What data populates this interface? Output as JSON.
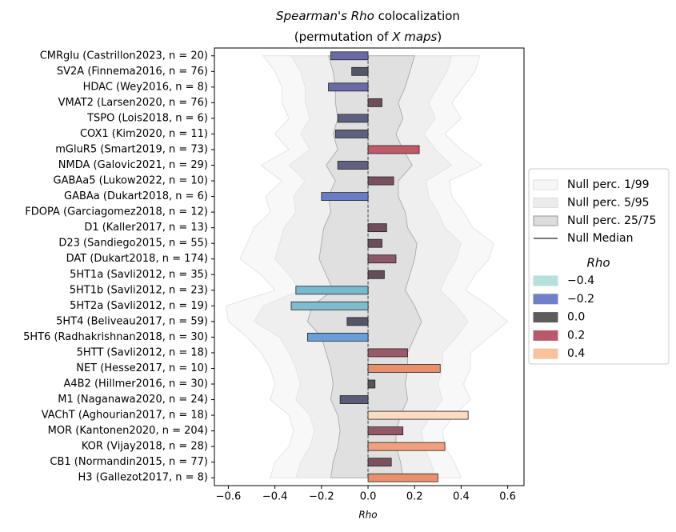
{
  "chart_data": {
    "type": "bar",
    "title_italic": "Spearman's Rho",
    "title": "colocalization",
    "subtitle_start": "(permutation of",
    "subtitle_italic": "X maps",
    "subtitle_end": ")",
    "x_label": "Rho",
    "categories": [
      "CMRglu (Castrillon2023, n = 20)",
      "SV2A (Finnema2016, n = 76)",
      "HDAC (Wey2016, n = 8)",
      "VMAT2 (Larsen2020, n = 76)",
      "TSPO (Lois2018, n = 6)",
      "COX1 (Kim2020, n = 11)",
      "mGluR5 (Smart2019, n = 73)",
      "NMDA (Galovic2021, n = 29)",
      "GABAa5 (Lukow2022, n = 10)",
      "GABAa (Dukart2018, n = 6)",
      "FDOPA (Garciagomez2018, n = 12)",
      "D1 (Kaller2017, n = 13)",
      "D23 (Sandiego2015, n = 55)",
      "DAT (Dukart2018, n = 174)",
      "5HT1a (Savli2012, n = 35)",
      "5HT1b (Savli2012, n = 23)",
      "5HT2a (Savli2012, n = 19)",
      "5HT4 (Beliveau2017, n = 59)",
      "5HT6 (Radhakrishnan2018, n = 30)",
      "5HTT (Savli2012, n = 18)",
      "NET (Hesse2017, n = 10)",
      "A4B2 (Hillmer2016, n = 30)",
      "M1 (Naganawa2020, n = 24)",
      "VAChT (Aghourian2017, n = 18)",
      "MOR (Kantonen2020, n = 204)",
      "KOR (Vijay2018, n = 28)",
      "CB1 (Normandin2015, n = 77)",
      "H3 (Gallezot2017, n = 8)"
    ],
    "values": [
      -0.16,
      -0.07,
      -0.17,
      0.06,
      -0.13,
      -0.14,
      0.22,
      -0.13,
      0.11,
      -0.2,
      0,
      0.08,
      0.06,
      0.12,
      0.07,
      -0.31,
      -0.33,
      -0.09,
      -0.26,
      0.17,
      0.31,
      0.03,
      -0.12,
      0.43,
      0.15,
      0.33,
      0.1,
      0.3
    ],
    "colors": [
      "#6a6aa8",
      "#55556a",
      "#6a6aa8",
      "#6e4f5a",
      "#5f5f80",
      "#5f5f80",
      "#c05a68",
      "#606080",
      "#7a5060",
      "#6a7cc8",
      "#5a5a5a",
      "#704e5c",
      "#6a4e5a",
      "#8a5868",
      "#644e58",
      "#78b8d0",
      "#80bcd0",
      "#555566",
      "#6a9ed8",
      "#9a5a6c",
      "#e8906c",
      "#555555",
      "#5c5c78",
      "#fbdcc0",
      "#925868",
      "#f0a07c",
      "#7c5060",
      "#e8906c"
    ],
    "bands": [
      {
        "name": "Null perc. 1/99",
        "color": "#f6f6f6",
        "lower": [
          -0.45,
          -0.4,
          -0.37,
          -0.37,
          -0.34,
          -0.4,
          -0.34,
          -0.46,
          -0.37,
          -0.44,
          -0.42,
          -0.49,
          -0.52,
          -0.55,
          -0.46,
          -0.4,
          -0.61,
          -0.6,
          -0.52,
          -0.46,
          -0.42,
          -0.4,
          -0.42,
          -0.34,
          -0.32,
          -0.34,
          -0.4,
          -0.42
        ],
        "upper": [
          0.48,
          0.46,
          0.41,
          0.36,
          0.4,
          0.33,
          0.4,
          0.49,
          0.35,
          0.36,
          0.41,
          0.45,
          0.54,
          0.52,
          0.46,
          0.42,
          0.52,
          0.6,
          0.52,
          0.44,
          0.44,
          0.41,
          0.44,
          0.37,
          0.32,
          0.33,
          0.37,
          0.4
        ]
      },
      {
        "name": "Null perc. 5/95",
        "color": "#ececec",
        "lower": [
          -0.33,
          -0.29,
          -0.27,
          -0.27,
          -0.25,
          -0.29,
          -0.25,
          -0.34,
          -0.27,
          -0.32,
          -0.31,
          -0.36,
          -0.38,
          -0.4,
          -0.34,
          -0.29,
          -0.45,
          -0.49,
          -0.38,
          -0.34,
          -0.31,
          -0.29,
          -0.31,
          -0.25,
          -0.23,
          -0.25,
          -0.29,
          -0.31
        ],
        "upper": [
          0.36,
          0.34,
          0.3,
          0.26,
          0.29,
          0.24,
          0.29,
          0.36,
          0.25,
          0.26,
          0.3,
          0.33,
          0.4,
          0.38,
          0.34,
          0.31,
          0.38,
          0.43,
          0.38,
          0.32,
          0.32,
          0.3,
          0.32,
          0.27,
          0.23,
          0.24,
          0.27,
          0.29
        ]
      },
      {
        "name": "Null perc. 25/75",
        "color": "#dcdcdc",
        "lower": [
          -0.17,
          -0.15,
          -0.14,
          -0.14,
          -0.13,
          -0.15,
          -0.13,
          -0.18,
          -0.14,
          -0.17,
          -0.16,
          -0.19,
          -0.2,
          -0.21,
          -0.18,
          -0.15,
          -0.24,
          -0.26,
          -0.2,
          -0.18,
          -0.16,
          -0.15,
          -0.16,
          -0.13,
          -0.12,
          -0.13,
          -0.15,
          -0.16
        ],
        "upper": [
          0.2,
          0.18,
          0.16,
          0.13,
          0.15,
          0.12,
          0.15,
          0.19,
          0.13,
          0.13,
          0.16,
          0.17,
          0.21,
          0.2,
          0.18,
          0.16,
          0.2,
          0.23,
          0.2,
          0.17,
          0.17,
          0.16,
          0.17,
          0.14,
          0.12,
          0.12,
          0.14,
          0.15
        ]
      }
    ],
    "median": {
      "name": "Null Median",
      "color": "#777777",
      "values": [
        0,
        0,
        0,
        0,
        0,
        0,
        0,
        0,
        0,
        0,
        0,
        0,
        0,
        0,
        0,
        0,
        0,
        0,
        0,
        0,
        0,
        0,
        0,
        0,
        0,
        0,
        0,
        0
      ]
    },
    "legend_title": "Rho",
    "legend_colors": [
      {
        "label": "−0.4",
        "color": "#b6e0dc"
      },
      {
        "label": "−0.2",
        "color": "#7080c8"
      },
      {
        "label": "0.0",
        "color": "#5c5c5c"
      },
      {
        "label": "0.2",
        "color": "#b85a6c"
      },
      {
        "label": "0.4",
        "color": "#f8c39c"
      }
    ],
    "legend_position": "right",
    "xlim": [
      -0.66,
      0.67
    ],
    "xticks": [
      {
        "value": -0.6,
        "label": "−0.6"
      },
      {
        "value": -0.4,
        "label": "−0.4"
      },
      {
        "value": -0.2,
        "label": "−0.2"
      },
      {
        "value": 0,
        "label": "0.0"
      },
      0.2,
      0.4,
      0.6
    ]
  }
}
